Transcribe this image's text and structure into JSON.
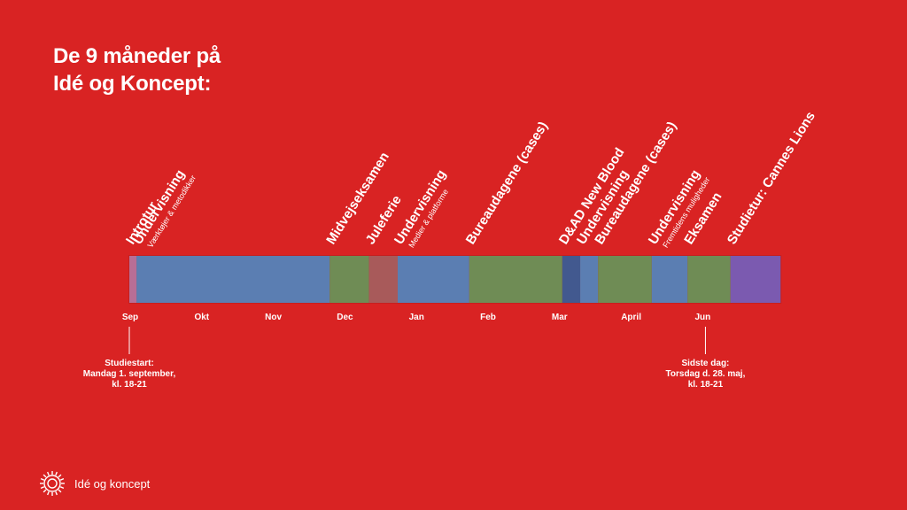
{
  "title": {
    "line1": "De 9 måneder på",
    "line2": "Idé og Koncept:"
  },
  "colors": {
    "background": "#d92323",
    "blue": "#5b7eb2",
    "green": "#6f8c55",
    "juleferie": "#a85a5a",
    "dark_blue": "#42598f",
    "purple": "#7b5ab0",
    "intro": "#b86e96"
  },
  "timeline": {
    "months": [
      "Sep",
      "Okt",
      "Nov",
      "Dec",
      "Jan",
      "Feb",
      "Mar",
      "April",
      "Jun"
    ],
    "segments": [
      {
        "label": "Introtur",
        "start": 0.0,
        "end": 0.1,
        "color": "intro"
      },
      {
        "label": "Undervisning",
        "sublabel": "Værktøjer & metodikker",
        "start": 0.1,
        "end": 2.8,
        "color": "blue"
      },
      {
        "label": "Midvejseksamen",
        "start": 2.8,
        "end": 3.35,
        "color": "green"
      },
      {
        "label": "Juleferie",
        "start": 3.35,
        "end": 3.75,
        "color": "juleferie"
      },
      {
        "label": "Undervisning",
        "sublabel": "Medier & platforme",
        "start": 3.75,
        "end": 4.75,
        "color": "blue"
      },
      {
        "label": "Bureaudagene (cases)",
        "start": 4.75,
        "end": 6.05,
        "color": "green"
      },
      {
        "label": "D&AD New Blood",
        "start": 6.05,
        "end": 6.3,
        "color": "dark_blue"
      },
      {
        "label": "Undervisning",
        "start": 6.3,
        "end": 6.55,
        "color": "blue"
      },
      {
        "label": "Bureaudagene (cases)",
        "start": 6.55,
        "end": 7.3,
        "color": "green"
      },
      {
        "label": "Undervisning",
        "sublabel": "Fremtidens muligheder",
        "start": 7.3,
        "end": 7.8,
        "color": "blue"
      },
      {
        "label": "Eksamen",
        "start": 7.8,
        "end": 8.4,
        "color": "green"
      },
      {
        "label": "Studietur: Cannes Lions",
        "start": 8.4,
        "end": 9.1,
        "color": "purple"
      }
    ],
    "start_note": {
      "lines": [
        "Studiestart:",
        "Mandag 1. september,",
        "kl. 18-21"
      ],
      "position": 0.0
    },
    "end_note": {
      "lines": [
        "Sidste dag:",
        "Torsdag d. 28. maj,",
        "kl. 18-21"
      ],
      "position": 8.05
    }
  },
  "footer": {
    "brand": "Idé og koncept",
    "logo_icon": "sun-burst-icon"
  }
}
